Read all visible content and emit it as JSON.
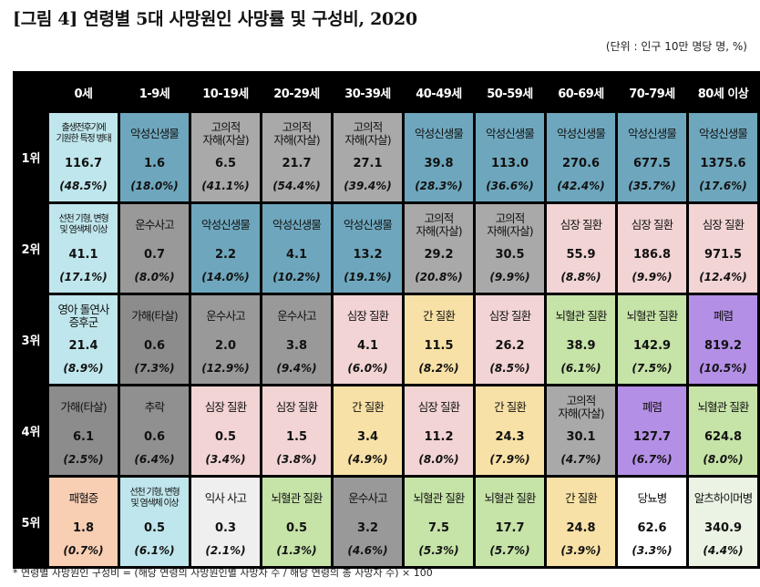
{
  "title": "[그림 4] 연령별 5대 사망원인 사망률 및 구성비, 2020",
  "unit": "(단위 : 인구 10만 명당 명, %)",
  "age_groups": [
    "0세",
    "1-9세",
    "10-19세",
    "20-29세",
    "30-39세",
    "40-49세",
    "50-59세",
    "60-69세",
    "70-79세",
    "80세 이상"
  ],
  "colors": {
    "perinatal": "#bfe6ec",
    "cancer": "#6ea7bd",
    "suicide": "#a9a9a9",
    "transport": "#999999",
    "congenital": "#bfe6ec",
    "heart": "#f2d4d4",
    "liver": "#f8e1a6",
    "cerebro": "#c6e3a8",
    "pneumonia": "#b48fe6",
    "assault": "#8c8c8c",
    "falls": "#909090",
    "drowning": "#efefef",
    "diabetes": "#ffffff",
    "alzheimer": "#ebf4e4",
    "sepsis": "#f9cfb4"
  },
  "rows": [
    {
      "rank": "1위",
      "cells": [
        {
          "cause": "출생전후기에\n기원한 특정 병태",
          "rate": "116.7",
          "pct": "(48.5%)",
          "color": "perinatal",
          "small": true
        },
        {
          "cause": "악성신생물",
          "rate": "1.6",
          "pct": "(18.0%)",
          "color": "cancer"
        },
        {
          "cause": "고의적\n자해(자살)",
          "rate": "6.5",
          "pct": "(41.1%)",
          "color": "suicide"
        },
        {
          "cause": "고의적\n자해(자살)",
          "rate": "21.7",
          "pct": "(54.4%)",
          "color": "suicide"
        },
        {
          "cause": "고의적\n자해(자살)",
          "rate": "27.1",
          "pct": "(39.4%)",
          "color": "suicide"
        },
        {
          "cause": "악성신생물",
          "rate": "39.8",
          "pct": "(28.3%)",
          "color": "cancer"
        },
        {
          "cause": "악성신생물",
          "rate": "113.0",
          "pct": "(36.6%)",
          "color": "cancer"
        },
        {
          "cause": "악성신생물",
          "rate": "270.6",
          "pct": "(42.4%)",
          "color": "cancer"
        },
        {
          "cause": "악성신생물",
          "rate": "677.5",
          "pct": "(35.7%)",
          "color": "cancer"
        },
        {
          "cause": "악성신생물",
          "rate": "1375.6",
          "pct": "(17.6%)",
          "color": "cancer"
        }
      ]
    },
    {
      "rank": "2위",
      "cells": [
        {
          "cause": "선천 기형, 변형\n및 염색체 이상",
          "rate": "41.1",
          "pct": "(17.1%)",
          "color": "congenital",
          "small": true
        },
        {
          "cause": "운수사고",
          "rate": "0.7",
          "pct": "(8.0%)",
          "color": "transport"
        },
        {
          "cause": "악성신생물",
          "rate": "2.2",
          "pct": "(14.0%)",
          "color": "cancer"
        },
        {
          "cause": "악성신생물",
          "rate": "4.1",
          "pct": "(10.2%)",
          "color": "cancer"
        },
        {
          "cause": "악성신생물",
          "rate": "13.2",
          "pct": "(19.1%)",
          "color": "cancer"
        },
        {
          "cause": "고의적\n자해(자살)",
          "rate": "29.2",
          "pct": "(20.8%)",
          "color": "suicide"
        },
        {
          "cause": "고의적\n자해(자살)",
          "rate": "30.5",
          "pct": "(9.9%)",
          "color": "suicide"
        },
        {
          "cause": "심장 질환",
          "rate": "55.9",
          "pct": "(8.8%)",
          "color": "heart"
        },
        {
          "cause": "심장 질환",
          "rate": "186.8",
          "pct": "(9.9%)",
          "color": "heart"
        },
        {
          "cause": "심장 질환",
          "rate": "971.5",
          "pct": "(12.4%)",
          "color": "heart"
        }
      ]
    },
    {
      "rank": "3위",
      "cells": [
        {
          "cause": "영아 돌연사\n증후군",
          "rate": "21.4",
          "pct": "(8.9%)",
          "color": "perinatal"
        },
        {
          "cause": "가해(타살)",
          "rate": "0.6",
          "pct": "(7.3%)",
          "color": "assault"
        },
        {
          "cause": "운수사고",
          "rate": "2.0",
          "pct": "(12.9%)",
          "color": "transport"
        },
        {
          "cause": "운수사고",
          "rate": "3.8",
          "pct": "(9.4%)",
          "color": "transport"
        },
        {
          "cause": "심장 질환",
          "rate": "4.1",
          "pct": "(6.0%)",
          "color": "heart"
        },
        {
          "cause": "간 질환",
          "rate": "11.5",
          "pct": "(8.2%)",
          "color": "liver"
        },
        {
          "cause": "심장 질환",
          "rate": "26.2",
          "pct": "(8.5%)",
          "color": "heart"
        },
        {
          "cause": "뇌혈관 질환",
          "rate": "38.9",
          "pct": "(6.1%)",
          "color": "cerebro"
        },
        {
          "cause": "뇌혈관 질환",
          "rate": "142.9",
          "pct": "(7.5%)",
          "color": "cerebro"
        },
        {
          "cause": "폐렴",
          "rate": "819.2",
          "pct": "(10.5%)",
          "color": "pneumonia"
        }
      ]
    },
    {
      "rank": "4위",
      "cells": [
        {
          "cause": "가해(타살)",
          "rate": "6.1",
          "pct": "(2.5%)",
          "color": "assault"
        },
        {
          "cause": "추락",
          "rate": "0.6",
          "pct": "(6.4%)",
          "color": "falls"
        },
        {
          "cause": "심장 질환",
          "rate": "0.5",
          "pct": "(3.4%)",
          "color": "heart"
        },
        {
          "cause": "심장 질환",
          "rate": "1.5",
          "pct": "(3.8%)",
          "color": "heart"
        },
        {
          "cause": "간 질환",
          "rate": "3.4",
          "pct": "(4.9%)",
          "color": "liver"
        },
        {
          "cause": "심장 질환",
          "rate": "11.2",
          "pct": "(8.0%)",
          "color": "heart"
        },
        {
          "cause": "간 질환",
          "rate": "24.3",
          "pct": "(7.9%)",
          "color": "liver"
        },
        {
          "cause": "고의적\n자해(자살)",
          "rate": "30.1",
          "pct": "(4.7%)",
          "color": "suicide"
        },
        {
          "cause": "폐렴",
          "rate": "127.7",
          "pct": "(6.7%)",
          "color": "pneumonia"
        },
        {
          "cause": "뇌혈관 질환",
          "rate": "624.8",
          "pct": "(8.0%)",
          "color": "cerebro"
        }
      ]
    },
    {
      "rank": "5위",
      "cells": [
        {
          "cause": "패혈증",
          "rate": "1.8",
          "pct": "(0.7%)",
          "color": "sepsis"
        },
        {
          "cause": "선천 기형, 변형\n및 염색체 이상",
          "rate": "0.5",
          "pct": "(6.1%)",
          "color": "congenital",
          "small": true
        },
        {
          "cause": "익사 사고",
          "rate": "0.3",
          "pct": "(2.1%)",
          "color": "drowning"
        },
        {
          "cause": "뇌혈관 질환",
          "rate": "0.5",
          "pct": "(1.3%)",
          "color": "cerebro"
        },
        {
          "cause": "운수사고",
          "rate": "3.2",
          "pct": "(4.6%)",
          "color": "transport"
        },
        {
          "cause": "뇌혈관 질환",
          "rate": "7.5",
          "pct": "(5.3%)",
          "color": "cerebro"
        },
        {
          "cause": "뇌혈관 질환",
          "rate": "17.7",
          "pct": "(5.7%)",
          "color": "cerebro"
        },
        {
          "cause": "간 질환",
          "rate": "24.8",
          "pct": "(3.9%)",
          "color": "liver"
        },
        {
          "cause": "당뇨병",
          "rate": "62.6",
          "pct": "(3.3%)",
          "color": "diabetes"
        },
        {
          "cause": "알츠하이머병",
          "rate": "340.9",
          "pct": "(4.4%)",
          "color": "alzheimer"
        }
      ]
    }
  ],
  "footnote": "* 연령별 사망원인 구성비 = (해당 연령의 사망원인별 사망자 수 / 해당 연령의 총 사망자 수) × 100"
}
